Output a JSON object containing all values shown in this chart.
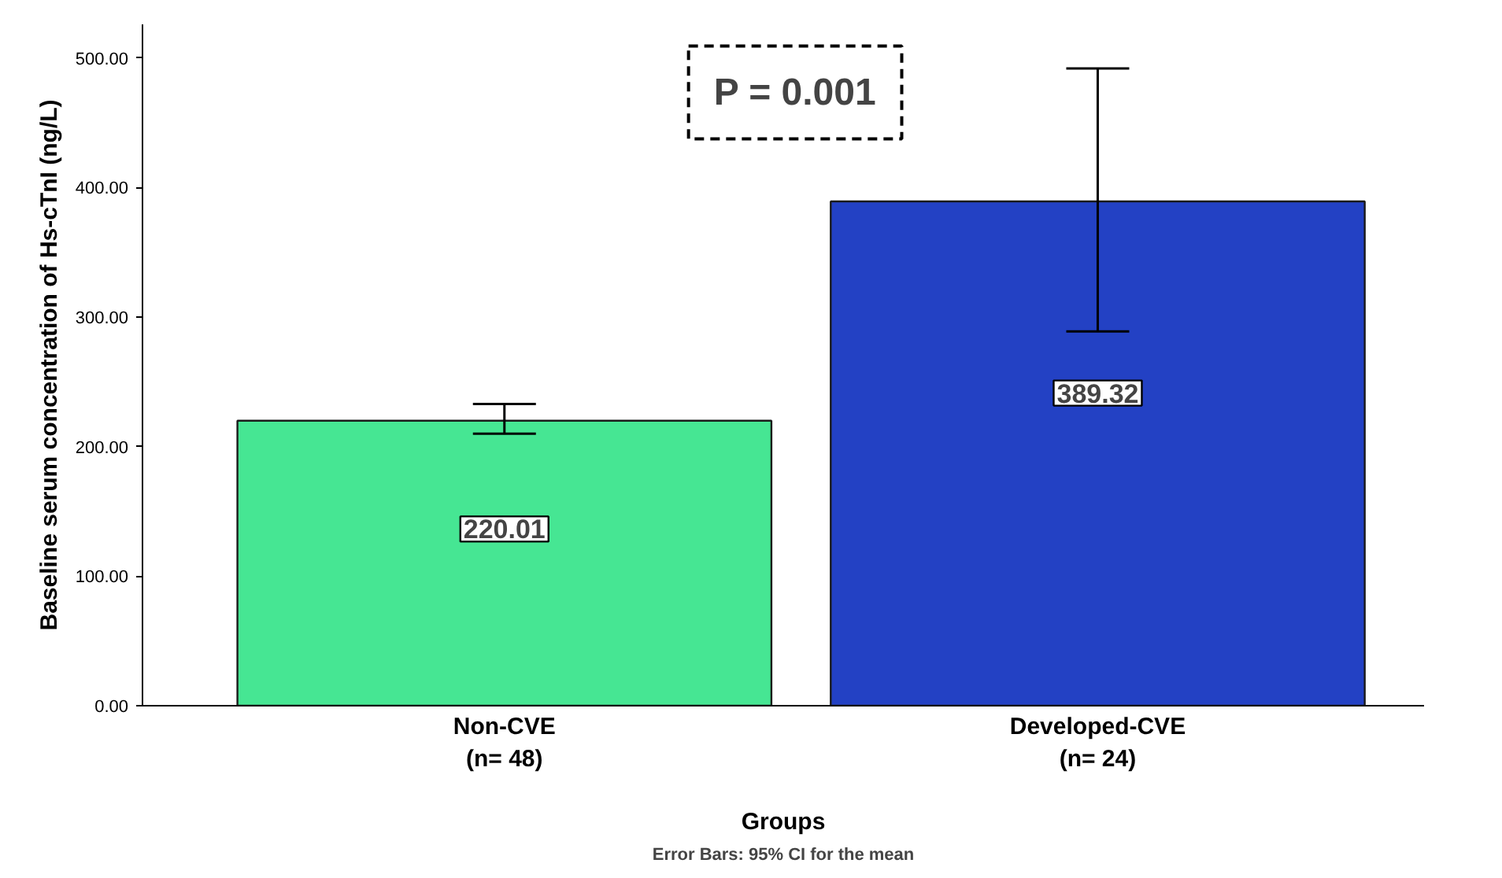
{
  "chart_data": {
    "type": "bar",
    "xlabel": "Groups",
    "ylabel": "Baseline serum concentration of Hs-cTnI (ng/L)",
    "categories": [
      "Non-CVE\n(n= 48)",
      "Developed-CVE\n(n= 24)"
    ],
    "values": [
      220.01,
      389.32
    ],
    "colors": [
      "#46e693",
      "#2341c4"
    ],
    "errors": [
      [
        210,
        233
      ],
      [
        289,
        492
      ]
    ],
    "value_labels": [
      "220.01",
      "389.32"
    ],
    "ylim": [
      0,
      526
    ],
    "yticks": [
      {
        "value": 0,
        "label": "0.00"
      },
      {
        "value": 100,
        "label": "100.00"
      },
      {
        "value": 200,
        "label": "200.00"
      },
      {
        "value": 300,
        "label": "300.00"
      },
      {
        "value": 400,
        "label": "400.00"
      },
      {
        "value": 500,
        "label": "500.00"
      }
    ],
    "grid": false,
    "annotations": [
      "P = 0.001",
      "Error Bars: 95% CI for the mean"
    ]
  }
}
